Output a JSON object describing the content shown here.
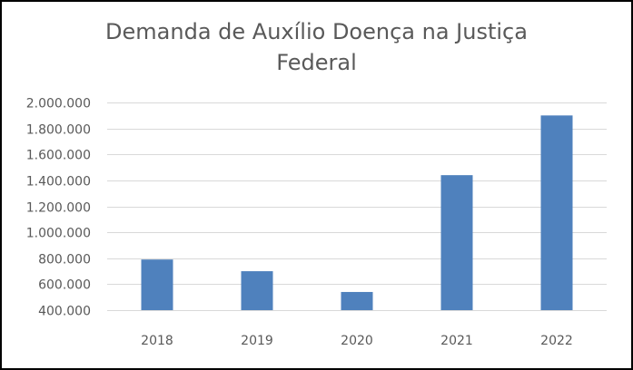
{
  "chart_data": {
    "type": "bar",
    "title_lines": [
      "Demanda de Auxílio Doença na Justiça",
      "Federal"
    ],
    "categories": [
      "2018",
      "2019",
      "2020",
      "2021",
      "2022"
    ],
    "values": [
      790000,
      700000,
      540000,
      1440000,
      1900000
    ],
    "ylim": [
      400000,
      2000000
    ],
    "yticks": [
      400000,
      600000,
      800000,
      1000000,
      1200000,
      1400000,
      1600000,
      1800000,
      2000000
    ],
    "ytick_labels": [
      "400.000",
      "600.000",
      "800.000",
      "1.000.000",
      "1.200.000",
      "1.400.000",
      "1.600.000",
      "1.800.000",
      "2.000.000"
    ],
    "grid": true,
    "legend": "none",
    "bar_color": "#4F81BD",
    "grid_color": "#D9D9D9"
  }
}
